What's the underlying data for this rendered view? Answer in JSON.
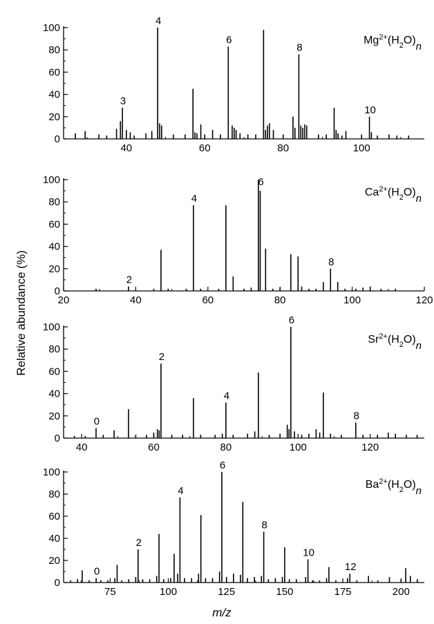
{
  "figure": {
    "ylabel": "Relative abundance (%)",
    "xlabel": "m/z"
  },
  "chart_data": [
    {
      "type": "bar",
      "legend": {
        "ion": "Mg",
        "charge": "2+",
        "water": "(H",
        "sub": "2",
        "close": "O)",
        "n": "n"
      },
      "xlim": [
        24,
        116
      ],
      "ylim": [
        0,
        100
      ],
      "xticks": [
        40,
        60,
        80,
        100
      ],
      "yticks": [
        0,
        20,
        40,
        60,
        80,
        100
      ],
      "peaks": [
        {
          "x": 27,
          "y": 5
        },
        {
          "x": 29.5,
          "y": 7
        },
        {
          "x": 33,
          "y": 4
        },
        {
          "x": 35,
          "y": 3
        },
        {
          "x": 37.5,
          "y": 9
        },
        {
          "x": 38.5,
          "y": 16
        },
        {
          "x": 39,
          "y": 28
        },
        {
          "x": 40,
          "y": 8
        },
        {
          "x": 41,
          "y": 6
        },
        {
          "x": 42,
          "y": 3
        },
        {
          "x": 45,
          "y": 5
        },
        {
          "x": 46.5,
          "y": 7
        },
        {
          "x": 48,
          "y": 100
        },
        {
          "x": 48.5,
          "y": 14
        },
        {
          "x": 49,
          "y": 12
        },
        {
          "x": 52,
          "y": 4
        },
        {
          "x": 55,
          "y": 4
        },
        {
          "x": 57,
          "y": 45
        },
        {
          "x": 57.5,
          "y": 6
        },
        {
          "x": 58,
          "y": 5
        },
        {
          "x": 59,
          "y": 13
        },
        {
          "x": 60,
          "y": 4
        },
        {
          "x": 62,
          "y": 8
        },
        {
          "x": 64,
          "y": 4
        },
        {
          "x": 66,
          "y": 83
        },
        {
          "x": 67,
          "y": 12
        },
        {
          "x": 67.5,
          "y": 10
        },
        {
          "x": 68,
          "y": 8
        },
        {
          "x": 69,
          "y": 5
        },
        {
          "x": 71,
          "y": 4
        },
        {
          "x": 73,
          "y": 4
        },
        {
          "x": 75,
          "y": 98
        },
        {
          "x": 75.5,
          "y": 8
        },
        {
          "x": 76,
          "y": 12
        },
        {
          "x": 76.5,
          "y": 14
        },
        {
          "x": 77.5,
          "y": 8
        },
        {
          "x": 80,
          "y": 4
        },
        {
          "x": 82.5,
          "y": 20
        },
        {
          "x": 83,
          "y": 10
        },
        {
          "x": 84,
          "y": 76
        },
        {
          "x": 84.5,
          "y": 12
        },
        {
          "x": 85,
          "y": 10
        },
        {
          "x": 85.5,
          "y": 13
        },
        {
          "x": 86,
          "y": 12
        },
        {
          "x": 89,
          "y": 4
        },
        {
          "x": 91,
          "y": 4
        },
        {
          "x": 93,
          "y": 28
        },
        {
          "x": 93.5,
          "y": 8
        },
        {
          "x": 94,
          "y": 5
        },
        {
          "x": 95,
          "y": 3
        },
        {
          "x": 96,
          "y": 7
        },
        {
          "x": 100,
          "y": 4
        },
        {
          "x": 102,
          "y": 20
        },
        {
          "x": 102.5,
          "y": 6
        },
        {
          "x": 104,
          "y": 3
        },
        {
          "x": 107,
          "y": 4
        },
        {
          "x": 109,
          "y": 3
        },
        {
          "x": 112,
          "y": 3
        }
      ],
      "labels": [
        {
          "text": "3",
          "x": 39,
          "y": 28
        },
        {
          "text": "4",
          "x": 48,
          "y": 100
        },
        {
          "text": "6",
          "x": 66,
          "y": 83
        },
        {
          "text": "8",
          "x": 84,
          "y": 76
        },
        {
          "text": "10",
          "x": 102,
          "y": 20
        }
      ]
    },
    {
      "type": "bar",
      "legend": {
        "ion": "Ca",
        "charge": "2+",
        "water": "(H",
        "sub": "2",
        "close": "O)",
        "n": "n"
      },
      "xlim": [
        20,
        120
      ],
      "ylim": [
        0,
        100
      ],
      "xticks": [
        20,
        40,
        60,
        80,
        100,
        120
      ],
      "yticks": [
        0,
        20,
        40,
        60,
        80,
        100
      ],
      "peaks": [
        {
          "x": 29,
          "y": 2
        },
        {
          "x": 38,
          "y": 4
        },
        {
          "x": 45,
          "y": 2
        },
        {
          "x": 47,
          "y": 37
        },
        {
          "x": 49,
          "y": 2
        },
        {
          "x": 54,
          "y": 2
        },
        {
          "x": 56,
          "y": 77
        },
        {
          "x": 58,
          "y": 2
        },
        {
          "x": 63,
          "y": 2
        },
        {
          "x": 65,
          "y": 77
        },
        {
          "x": 67,
          "y": 13
        },
        {
          "x": 70,
          "y": 2
        },
        {
          "x": 72,
          "y": 3
        },
        {
          "x": 74,
          "y": 100
        },
        {
          "x": 74.5,
          "y": 90
        },
        {
          "x": 76,
          "y": 38
        },
        {
          "x": 78,
          "y": 2
        },
        {
          "x": 80,
          "y": 3
        },
        {
          "x": 83,
          "y": 33
        },
        {
          "x": 85,
          "y": 31
        },
        {
          "x": 86,
          "y": 4
        },
        {
          "x": 88,
          "y": 2
        },
        {
          "x": 90,
          "y": 2
        },
        {
          "x": 92,
          "y": 8
        },
        {
          "x": 94,
          "y": 20
        },
        {
          "x": 96,
          "y": 8
        },
        {
          "x": 98,
          "y": 2
        },
        {
          "x": 101,
          "y": 2
        },
        {
          "x": 103,
          "y": 3
        },
        {
          "x": 105,
          "y": 4
        },
        {
          "x": 108,
          "y": 2
        },
        {
          "x": 112,
          "y": 2
        }
      ],
      "labels": [
        {
          "text": "2",
          "x": 38,
          "y": 4
        },
        {
          "text": "4",
          "x": 56,
          "y": 77
        },
        {
          "text": "6",
          "x": 74.5,
          "y": 92
        },
        {
          "text": "8",
          "x": 94,
          "y": 20
        }
      ]
    },
    {
      "type": "bar",
      "legend": {
        "ion": "Sr",
        "charge": "2+",
        "water": "(H",
        "sub": "2",
        "close": "O)",
        "n": "n"
      },
      "xlim": [
        35,
        135
      ],
      "ylim": [
        0,
        100
      ],
      "xticks": [
        40,
        60,
        80,
        100,
        120
      ],
      "yticks": [
        0,
        20,
        40,
        60,
        80,
        100
      ],
      "peaks": [
        {
          "x": 38,
          "y": 2
        },
        {
          "x": 41,
          "y": 2
        },
        {
          "x": 44,
          "y": 9
        },
        {
          "x": 46,
          "y": 3
        },
        {
          "x": 49,
          "y": 7
        },
        {
          "x": 53,
          "y": 26
        },
        {
          "x": 55,
          "y": 3
        },
        {
          "x": 58,
          "y": 3
        },
        {
          "x": 60,
          "y": 5
        },
        {
          "x": 61,
          "y": 8
        },
        {
          "x": 61.5,
          "y": 7
        },
        {
          "x": 62,
          "y": 67
        },
        {
          "x": 65,
          "y": 3
        },
        {
          "x": 68,
          "y": 3
        },
        {
          "x": 71,
          "y": 36
        },
        {
          "x": 73,
          "y": 3
        },
        {
          "x": 77,
          "y": 3
        },
        {
          "x": 79,
          "y": 4
        },
        {
          "x": 80,
          "y": 32
        },
        {
          "x": 82,
          "y": 3
        },
        {
          "x": 86,
          "y": 4
        },
        {
          "x": 88,
          "y": 6
        },
        {
          "x": 89,
          "y": 59
        },
        {
          "x": 92,
          "y": 3
        },
        {
          "x": 95,
          "y": 4
        },
        {
          "x": 97,
          "y": 12
        },
        {
          "x": 97.5,
          "y": 8
        },
        {
          "x": 98,
          "y": 100
        },
        {
          "x": 99,
          "y": 6
        },
        {
          "x": 101,
          "y": 3
        },
        {
          "x": 103,
          "y": 4
        },
        {
          "x": 105,
          "y": 8
        },
        {
          "x": 106,
          "y": 5
        },
        {
          "x": 107,
          "y": 41
        },
        {
          "x": 109,
          "y": 4
        },
        {
          "x": 112,
          "y": 3
        },
        {
          "x": 116,
          "y": 14
        },
        {
          "x": 118,
          "y": 3
        },
        {
          "x": 122,
          "y": 3
        },
        {
          "x": 125,
          "y": 5
        },
        {
          "x": 127,
          "y": 4
        },
        {
          "x": 130,
          "y": 3
        },
        {
          "x": 133,
          "y": 3
        }
      ],
      "labels": [
        {
          "text": "0",
          "x": 44,
          "y": 9
        },
        {
          "text": "2",
          "x": 62,
          "y": 67
        },
        {
          "text": "4",
          "x": 80,
          "y": 32
        },
        {
          "text": "6",
          "x": 98,
          "y": 100
        },
        {
          "text": "8",
          "x": 116,
          "y": 14
        }
      ]
    },
    {
      "type": "bar",
      "legend": {
        "ion": "Ba",
        "charge": "2+",
        "water": "(H",
        "sub": "2",
        "close": "O)",
        "n": "n"
      },
      "xlim": [
        55,
        210
      ],
      "ylim": [
        0,
        100
      ],
      "xticks": [
        75,
        100,
        125,
        150,
        175,
        200
      ],
      "yticks": [
        0,
        20,
        40,
        60,
        80,
        100
      ],
      "peaks": [
        {
          "x": 58,
          "y": 2
        },
        {
          "x": 61,
          "y": 3
        },
        {
          "x": 63,
          "y": 11
        },
        {
          "x": 66,
          "y": 2
        },
        {
          "x": 69,
          "y": 4
        },
        {
          "x": 71,
          "y": 2
        },
        {
          "x": 74,
          "y": 2
        },
        {
          "x": 77,
          "y": 4
        },
        {
          "x": 78,
          "y": 16
        },
        {
          "x": 80,
          "y": 2
        },
        {
          "x": 83,
          "y": 3
        },
        {
          "x": 86,
          "y": 5
        },
        {
          "x": 87,
          "y": 30
        },
        {
          "x": 89,
          "y": 3
        },
        {
          "x": 92,
          "y": 3
        },
        {
          "x": 95,
          "y": 6
        },
        {
          "x": 96,
          "y": 44
        },
        {
          "x": 98,
          "y": 3
        },
        {
          "x": 101,
          "y": 4
        },
        {
          "x": 102.5,
          "y": 26
        },
        {
          "x": 104,
          "y": 8
        },
        {
          "x": 105,
          "y": 77
        },
        {
          "x": 107,
          "y": 4
        },
        {
          "x": 110,
          "y": 4
        },
        {
          "x": 113,
          "y": 8
        },
        {
          "x": 114,
          "y": 61
        },
        {
          "x": 116,
          "y": 4
        },
        {
          "x": 119,
          "y": 4
        },
        {
          "x": 122,
          "y": 10
        },
        {
          "x": 123,
          "y": 100
        },
        {
          "x": 125,
          "y": 5
        },
        {
          "x": 128,
          "y": 8
        },
        {
          "x": 131,
          "y": 7
        },
        {
          "x": 132,
          "y": 73
        },
        {
          "x": 134,
          "y": 4
        },
        {
          "x": 137,
          "y": 5
        },
        {
          "x": 140,
          "y": 6
        },
        {
          "x": 141,
          "y": 46
        },
        {
          "x": 143,
          "y": 3
        },
        {
          "x": 146,
          "y": 4
        },
        {
          "x": 149,
          "y": 5
        },
        {
          "x": 150,
          "y": 32
        },
        {
          "x": 152,
          "y": 3
        },
        {
          "x": 155,
          "y": 3
        },
        {
          "x": 159,
          "y": 5
        },
        {
          "x": 160,
          "y": 21
        },
        {
          "x": 162,
          "y": 2
        },
        {
          "x": 165,
          "y": 2
        },
        {
          "x": 168,
          "y": 4
        },
        {
          "x": 169,
          "y": 14
        },
        {
          "x": 172,
          "y": 2
        },
        {
          "x": 177,
          "y": 4
        },
        {
          "x": 178,
          "y": 8
        },
        {
          "x": 181,
          "y": 2
        },
        {
          "x": 186,
          "y": 6
        },
        {
          "x": 190,
          "y": 2
        },
        {
          "x": 195,
          "y": 5
        },
        {
          "x": 200,
          "y": 3
        },
        {
          "x": 202,
          "y": 13
        },
        {
          "x": 204,
          "y": 6
        },
        {
          "x": 207,
          "y": 3
        }
      ],
      "labels": [
        {
          "text": "0",
          "x": 69,
          "y": 4
        },
        {
          "text": "2",
          "x": 87,
          "y": 30
        },
        {
          "text": "4",
          "x": 105,
          "y": 77
        },
        {
          "text": "6",
          "x": 123,
          "y": 100
        },
        {
          "text": "8",
          "x": 141,
          "y": 46
        },
        {
          "text": "10",
          "x": 160,
          "y": 21
        },
        {
          "text": "12",
          "x": 178,
          "y": 8
        }
      ]
    }
  ]
}
